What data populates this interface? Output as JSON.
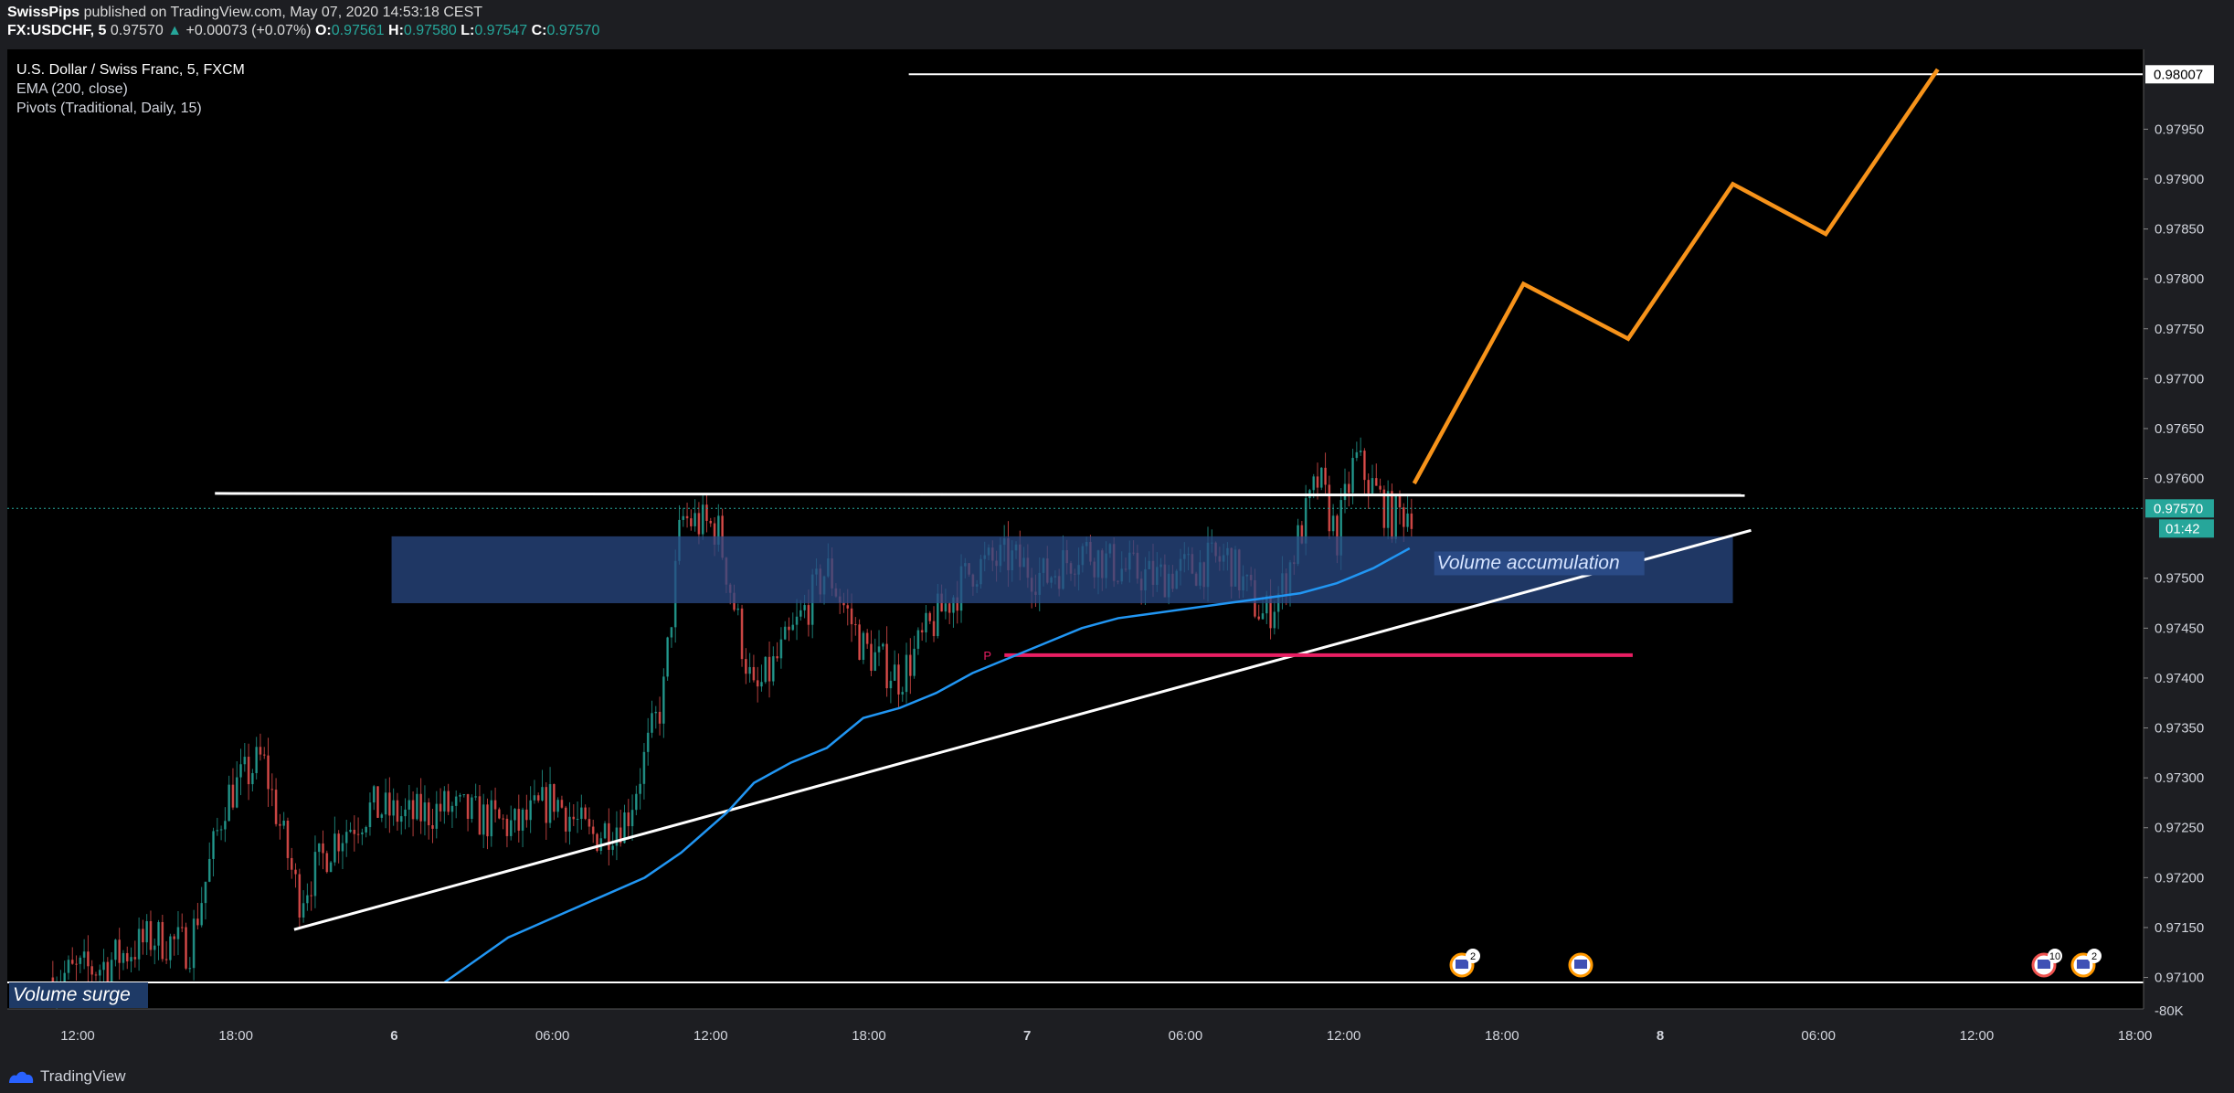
{
  "header": {
    "author": "SwissPips",
    "published": "published on TradingView.com, May 07, 2020 14:53:18 CEST",
    "symbol": "FX:USDCHF, 5",
    "last": "0.97570",
    "change": "+0.00073 (+0.07%)",
    "o_label": "O:",
    "o": "0.97561",
    "h_label": "H:",
    "h": "0.97580",
    "l_label": "L:",
    "l": "0.97547",
    "c_label": "C:",
    "c": "0.97570"
  },
  "legend": {
    "title": "U.S. Dollar / Swiss Franc, 5, FXCM",
    "ema": "EMA (200, close)",
    "pivots": "Pivots (Traditional, Daily, 15)"
  },
  "footer": {
    "brand": "TradingView"
  },
  "colors": {
    "background": "#000000",
    "up": "#26a69a",
    "down": "#ef5350",
    "ema": "#2196f3",
    "projection": "#f7931a",
    "zone": "#2a4a85",
    "pivot": "#e91e63"
  },
  "chart_data": {
    "type": "candlestick",
    "title": "U.S. Dollar / Swiss Franc, 5, FXCM",
    "y_axis_labels": [
      "0.97950",
      "0.97900",
      "0.97850",
      "0.97800",
      "0.97750",
      "0.97700",
      "0.97650",
      "0.97600",
      "0.97500",
      "0.97450",
      "0.97400",
      "0.97350",
      "0.97300",
      "0.97250",
      "0.97200",
      "0.97150",
      "0.97100"
    ],
    "y_range": [
      0.97095,
      0.9803
    ],
    "x_axis_labels": [
      "12:00",
      "18:00",
      "6",
      "06:00",
      "12:00",
      "18:00",
      "7",
      "06:00",
      "12:00",
      "18:00",
      "8",
      "06:00",
      "12:00",
      "18:00"
    ],
    "price_badges": {
      "resistance": "0.98007",
      "last": "0.97570",
      "countdown": "01:42"
    },
    "volume_axis_label": "-80K",
    "annotations": {
      "zone_label": "Volume accumulation",
      "volume_label": "Volume surge",
      "pivot_label": "P"
    },
    "event_badges": [
      "2",
      "10",
      "2"
    ],
    "ema_points": [
      [
        0.48,
        0.97095
      ],
      [
        0.55,
        0.9714
      ],
      [
        0.6,
        0.9716
      ],
      [
        0.65,
        0.9718
      ],
      [
        0.7,
        0.972
      ],
      [
        0.74,
        0.97225
      ],
      [
        0.79,
        0.97265
      ],
      [
        0.82,
        0.97295
      ],
      [
        0.86,
        0.97315
      ],
      [
        0.9,
        0.9733
      ],
      [
        0.94,
        0.9736
      ],
      [
        0.98,
        0.9737
      ],
      [
        1.02,
        0.97385
      ],
      [
        1.06,
        0.97405
      ],
      [
        1.1,
        0.9742
      ],
      [
        1.14,
        0.97435
      ],
      [
        1.18,
        0.9745
      ],
      [
        1.22,
        0.9746
      ],
      [
        1.26,
        0.97465
      ],
      [
        1.3,
        0.9747
      ],
      [
        1.34,
        0.97475
      ],
      [
        1.38,
        0.9748
      ],
      [
        1.42,
        0.97485
      ],
      [
        1.46,
        0.97495
      ],
      [
        1.5,
        0.9751
      ],
      [
        1.54,
        0.9753
      ]
    ],
    "projection_points": [
      [
        1.545,
        0.97595
      ],
      [
        1.665,
        0.97795
      ],
      [
        1.78,
        0.9774
      ],
      [
        1.895,
        0.97895
      ],
      [
        1.997,
        0.97845
      ],
      [
        2.12,
        0.9801
      ]
    ],
    "trendline": [
      [
        0.315,
        0.97148
      ],
      [
        1.915,
        0.97548
      ]
    ],
    "resistance_line": [
      [
        0.228,
        0.97585
      ],
      [
        1.908,
        0.97583
      ]
    ],
    "top_line": [
      [
        0.99,
        0.98005
      ],
      [
        2.345,
        0.98005
      ]
    ],
    "pivot_line": [
      [
        1.095,
        0.97423
      ],
      [
        1.785,
        0.97423
      ]
    ],
    "zone": {
      "x": [
        0.422,
        1.895
      ],
      "y": [
        0.97475,
        0.97542
      ]
    }
  }
}
